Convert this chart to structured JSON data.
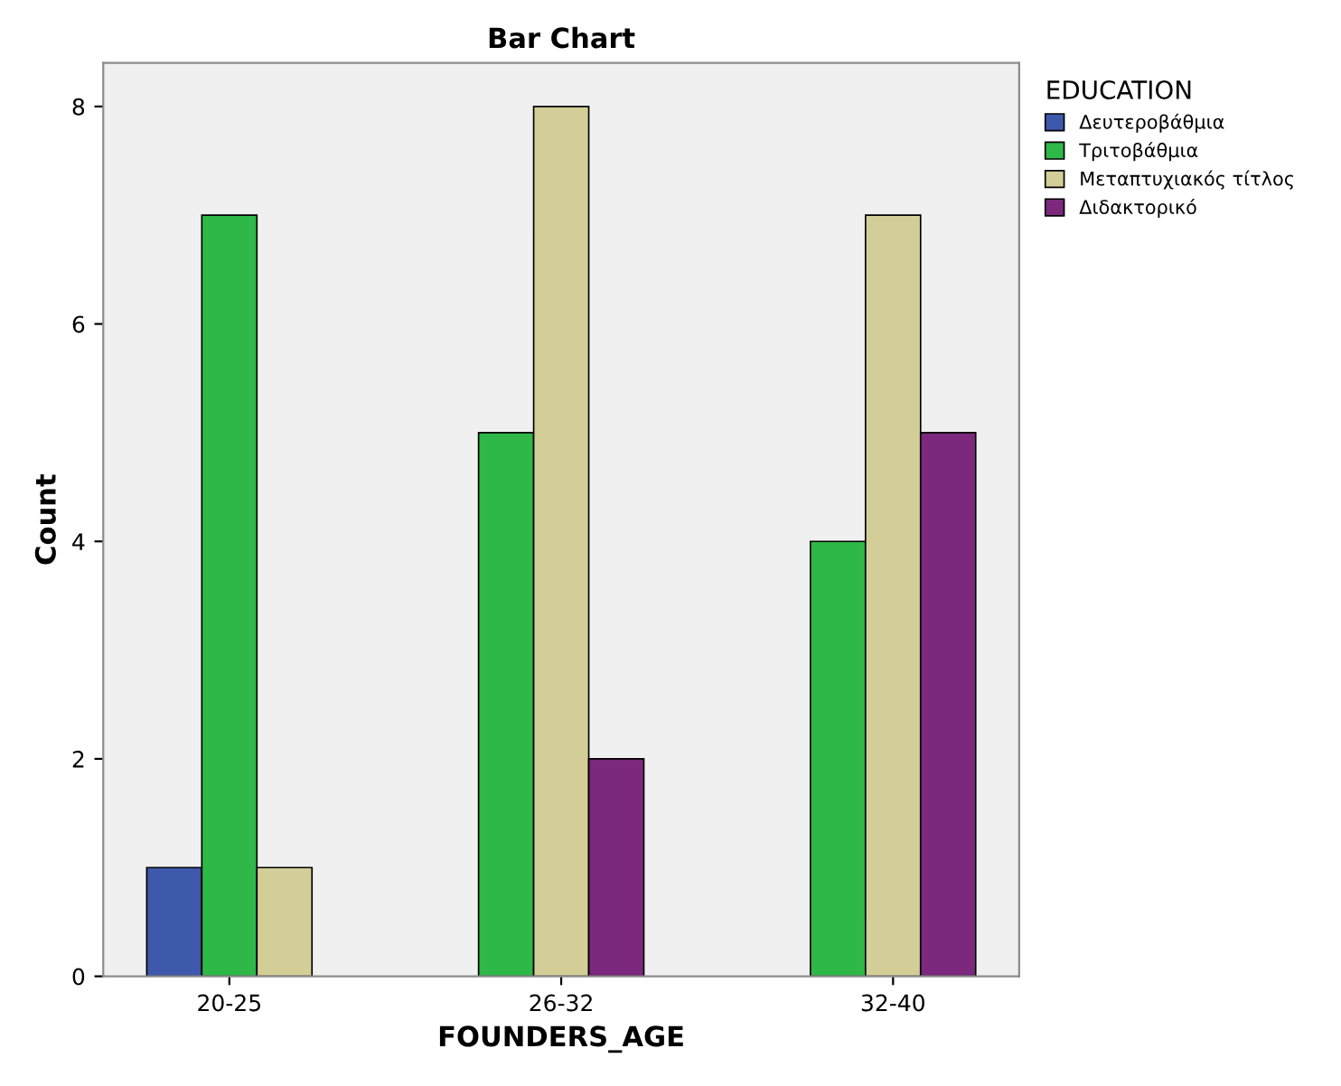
{
  "chart_data": {
    "type": "bar",
    "title": "Bar Chart",
    "xlabel": "FOUNDERS_AGE",
    "ylabel": "Count",
    "legend_title": "EDUCATION",
    "categories": [
      "20-25",
      "26-32",
      "32-40"
    ],
    "series": [
      {
        "name": "Δευτεροβάθμια",
        "color": "#3e58ac",
        "values": [
          1,
          null,
          null
        ]
      },
      {
        "name": "Τριτοβάθμια",
        "color": "#2eb848",
        "values": [
          7,
          5,
          4
        ]
      },
      {
        "name": "Μεταπτυχιακός τίτλος",
        "color": "#d3ce97",
        "values": [
          1,
          8,
          7
        ]
      },
      {
        "name": "Διδακτορικό",
        "color": "#7c287d",
        "values": [
          null,
          2,
          5
        ]
      }
    ],
    "ylim": [
      0,
      8.4
    ],
    "yticks": [
      0,
      2,
      4,
      6,
      8
    ],
    "grid": false,
    "legend": "top right"
  }
}
